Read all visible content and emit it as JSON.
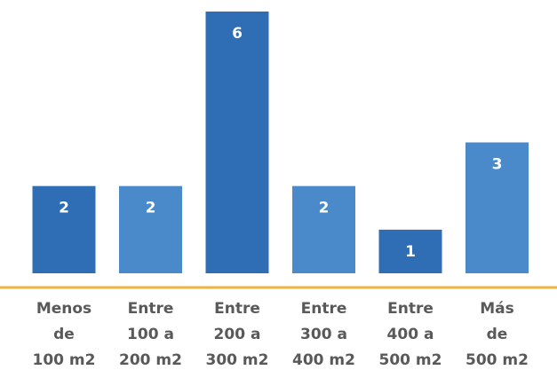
{
  "chart_data": {
    "type": "bar",
    "categories": [
      [
        "Menos",
        "de",
        "100 m2"
      ],
      [
        "Entre",
        "100 a",
        "200 m2"
      ],
      [
        "Entre",
        "200 a",
        "300 m2"
      ],
      [
        "Entre",
        "300 a",
        "400 m2"
      ],
      [
        "Entre",
        "400 a",
        "500 m2"
      ],
      [
        "Más",
        "de",
        "500 m2"
      ]
    ],
    "values": [
      2,
      2,
      6,
      2,
      1,
      3
    ],
    "data_labels": [
      "2",
      "2",
      "6",
      "2",
      "1",
      "3"
    ],
    "title": "",
    "xlabel": "",
    "ylabel": "",
    "ylim": [
      0,
      6
    ],
    "grid": false,
    "legend": "none",
    "bar_colors": [
      "#2f6db5",
      "#4a8acb",
      "#2f6db5",
      "#4a8acb",
      "#2f6db5",
      "#4a8acb"
    ],
    "axis_color": "#f0b43c",
    "label_color": "#ffffff",
    "tick_label_color": "#595959"
  }
}
